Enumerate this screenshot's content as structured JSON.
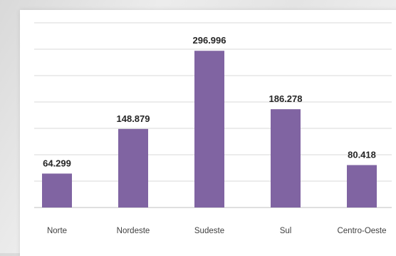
{
  "chart_data": {
    "type": "bar",
    "title": "",
    "xlabel": "",
    "ylabel": "",
    "categories": [
      "Norte",
      "Nordeste",
      "Sudeste",
      "Sul",
      "Centro-Oeste"
    ],
    "labels": [
      "64.299",
      "148.879",
      "296.996",
      "186.278",
      "80.418"
    ],
    "values": [
      64299,
      148879,
      296996,
      186278,
      80418
    ],
    "ylim": [
      0,
      350000
    ],
    "grid": true,
    "legend": "none",
    "bar_color": "#8064a2"
  }
}
